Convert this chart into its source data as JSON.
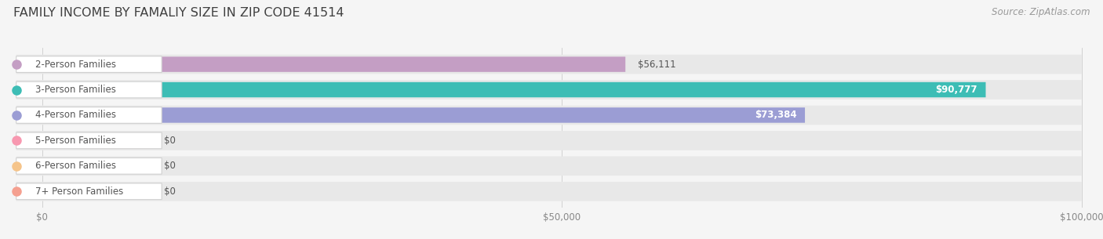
{
  "title": "FAMILY INCOME BY FAMALIY SIZE IN ZIP CODE 41514",
  "source": "Source: ZipAtlas.com",
  "categories": [
    "2-Person Families",
    "3-Person Families",
    "4-Person Families",
    "5-Person Families",
    "6-Person Families",
    "7+ Person Families"
  ],
  "values": [
    56111,
    90777,
    73384,
    0,
    0,
    0
  ],
  "bar_colors": [
    "#c49ec4",
    "#3dbdb5",
    "#9b9dd4",
    "#f898b0",
    "#f5c48a",
    "#f5a090"
  ],
  "value_labels": [
    "$56,111",
    "$90,777",
    "$73,384",
    "$0",
    "$0",
    "$0"
  ],
  "value_label_inside": [
    false,
    true,
    true,
    false,
    false,
    false
  ],
  "xlim_max": 100000,
  "xticks": [
    0,
    50000,
    100000
  ],
  "xticklabels": [
    "$0",
    "$50,000",
    "$100,000"
  ],
  "bg_color": "#f5f5f5",
  "bar_bg_color": "#e8e8e8",
  "title_fontsize": 11.5,
  "source_fontsize": 8.5,
  "label_fontsize": 8.5,
  "value_fontsize": 8.5,
  "zero_bar_width": 10500
}
